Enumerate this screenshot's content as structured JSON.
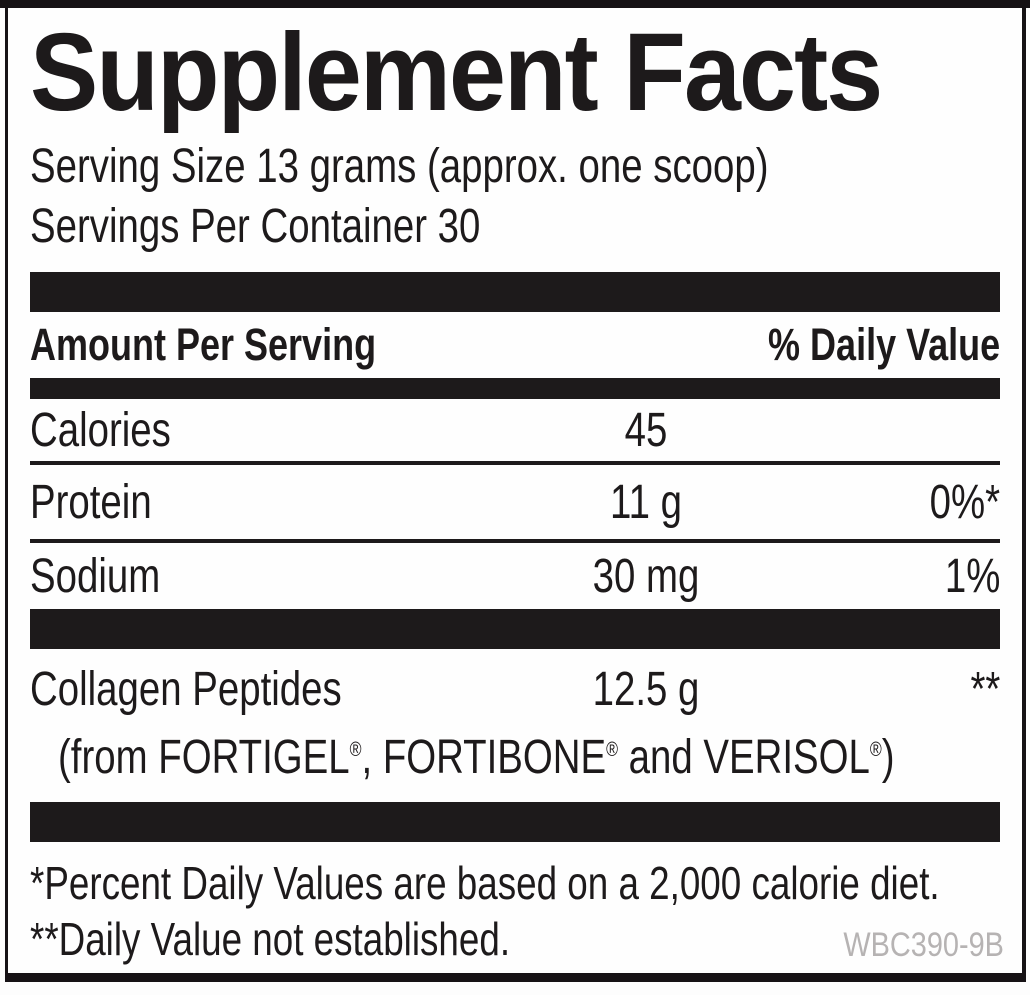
{
  "label": {
    "title": "Supplement Facts",
    "serving_size": "Serving Size 13 grams (approx. one scoop)",
    "servings_per_container": "Servings Per Container 30",
    "header": {
      "amount_per_serving": "Amount Per Serving",
      "daily_value": "% Daily Value"
    },
    "rows": [
      {
        "name": "Calories",
        "amount": "45",
        "dv": ""
      },
      {
        "name": "Protein",
        "amount": "11 g",
        "dv": "0%*"
      },
      {
        "name": "Sodium",
        "amount": "30 mg",
        "dv": "1%"
      }
    ],
    "collagen": {
      "name": "Collagen Peptides",
      "amount": "12.5 g",
      "dv": "**",
      "source_text": "(from FORTIGEL®, FORTIBONE® and VERISOL®)",
      "source_segments": [
        {
          "t": "(from FORTIGEL"
        },
        {
          "t": "®",
          "sup": true
        },
        {
          "t": ", FORTIBONE"
        },
        {
          "t": "®",
          "sup": true
        },
        {
          "t": " and VERISOL"
        },
        {
          "t": "®",
          "sup": true
        },
        {
          "t": ")"
        }
      ]
    },
    "footnotes": [
      "*Percent Daily Values are based on a 2,000 calorie diet.",
      "**Daily Value not established."
    ],
    "product_code": "WBC390-9B",
    "colors": {
      "ink": "#1d1a1b",
      "border": "#161215",
      "muted_code": "#b6b3b3",
      "background": "#fdfdfd"
    }
  }
}
